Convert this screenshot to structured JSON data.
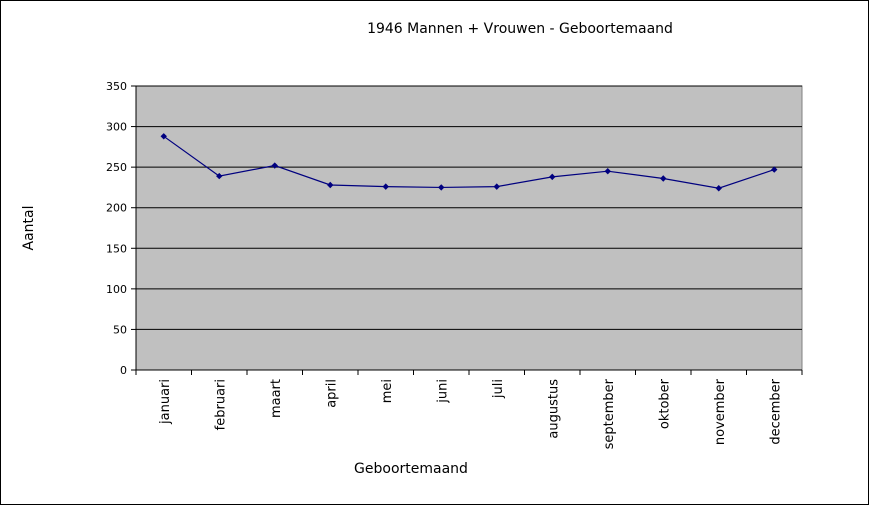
{
  "chart_data": {
    "type": "line",
    "title": "1946 Mannen + Vrouwen - Geboortemaand",
    "xlabel": "Geboortemaand",
    "ylabel": "Aantal",
    "categories": [
      "januari",
      "februari",
      "maart",
      "april",
      "mei",
      "juni",
      "juli",
      "augustus",
      "september",
      "oktober",
      "november",
      "december"
    ],
    "series": [
      {
        "values": [
          288,
          239,
          252,
          228,
          226,
          225,
          226,
          238,
          245,
          236,
          224,
          247
        ]
      }
    ],
    "ylim": [
      0,
      350
    ],
    "yticks": [
      0,
      50,
      100,
      150,
      200,
      250,
      300,
      350
    ],
    "grid": true,
    "legend": "none",
    "colors": {
      "line": "#00007f",
      "plot_background": "#c0c0c0",
      "gridline": "#000000"
    }
  }
}
